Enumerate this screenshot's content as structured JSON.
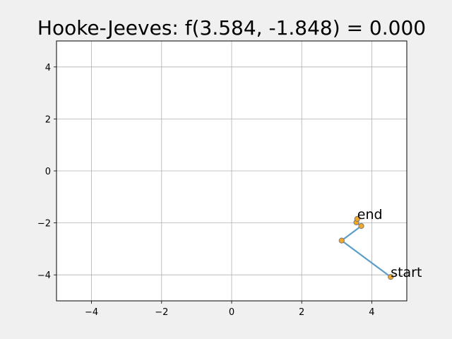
{
  "chart_data": {
    "type": "line",
    "title": "Hooke-Jeeves: f(3.584, -1.848) = 0.000",
    "xlabel": "",
    "ylabel": "",
    "xlim": [
      -5,
      5
    ],
    "ylim": [
      -5,
      5
    ],
    "xticks": [
      -4,
      -2,
      0,
      2,
      4
    ],
    "yticks": [
      -4,
      -2,
      0,
      2,
      4
    ],
    "xtick_labels": [
      "−4",
      "−2",
      "0",
      "2",
      "4"
    ],
    "ytick_labels": [
      "−4",
      "−2",
      "0",
      "2",
      "4"
    ],
    "grid": true,
    "series": [
      {
        "line_color": "#5b9ec9",
        "marker_color": "#f5a623",
        "marker_edge": "#7a7a7a",
        "points": [
          {
            "x": 4.54,
            "y": -4.08
          },
          {
            "x": 3.14,
            "y": -2.68
          },
          {
            "x": 3.7,
            "y": -2.12
          },
          {
            "x": 3.56,
            "y": -1.98
          },
          {
            "x": 3.584,
            "y": -1.848
          }
        ]
      }
    ],
    "annotations": [
      {
        "text": "start",
        "x": 4.54,
        "y": -4.08
      },
      {
        "text": "end",
        "x": 3.584,
        "y": -1.848
      }
    ]
  }
}
